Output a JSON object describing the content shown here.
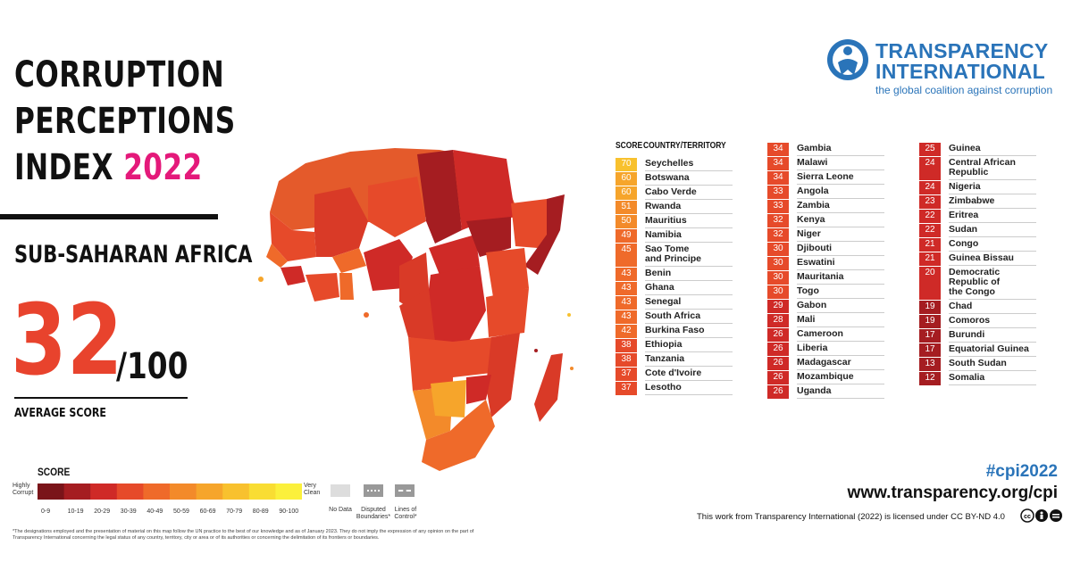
{
  "title": {
    "line1": "CORRUPTION",
    "line2": "PERCEPTIONS",
    "line3_prefix": "INDEX ",
    "year": "2022"
  },
  "region": "SUB-SAHARAN AFRICA",
  "average": {
    "score": "32",
    "max": "/100",
    "label": "AVERAGE SCORE"
  },
  "logo": {
    "name_line1": "TRANSPARENCY",
    "name_line2": "INTERNATIONAL",
    "tagline": "the global coalition against corruption",
    "icon": "figure-in-circle-icon",
    "color": "#2a74b9"
  },
  "table_headers": {
    "score": "SCORE",
    "country": "COUNTRY/TERRITORY"
  },
  "chart_data": {
    "type": "table",
    "columns": [
      "SCORE",
      "COUNTRY/TERRITORY"
    ],
    "rows": [
      {
        "score": 70,
        "country": "Seychelles"
      },
      {
        "score": 60,
        "country": "Botswana"
      },
      {
        "score": 60,
        "country": "Cabo Verde"
      },
      {
        "score": 51,
        "country": "Rwanda"
      },
      {
        "score": 50,
        "country": "Mauritius"
      },
      {
        "score": 49,
        "country": "Namibia"
      },
      {
        "score": 45,
        "country": "Sao Tome\nand Principe"
      },
      {
        "score": 43,
        "country": "Benin"
      },
      {
        "score": 43,
        "country": "Ghana"
      },
      {
        "score": 43,
        "country": "Senegal"
      },
      {
        "score": 43,
        "country": "South Africa"
      },
      {
        "score": 42,
        "country": "Burkina Faso"
      },
      {
        "score": 38,
        "country": "Ethiopia"
      },
      {
        "score": 38,
        "country": "Tanzania"
      },
      {
        "score": 37,
        "country": "Cote d'Ivoire"
      },
      {
        "score": 37,
        "country": "Lesotho"
      },
      {
        "score": 34,
        "country": "Gambia"
      },
      {
        "score": 34,
        "country": "Malawi"
      },
      {
        "score": 34,
        "country": "Sierra Leone"
      },
      {
        "score": 33,
        "country": "Angola"
      },
      {
        "score": 33,
        "country": "Zambia"
      },
      {
        "score": 32,
        "country": "Kenya"
      },
      {
        "score": 32,
        "country": "Niger"
      },
      {
        "score": 30,
        "country": "Djibouti"
      },
      {
        "score": 30,
        "country": "Eswatini"
      },
      {
        "score": 30,
        "country": "Mauritania"
      },
      {
        "score": 30,
        "country": "Togo"
      },
      {
        "score": 29,
        "country": "Gabon"
      },
      {
        "score": 28,
        "country": "Mali"
      },
      {
        "score": 26,
        "country": "Cameroon"
      },
      {
        "score": 26,
        "country": "Liberia"
      },
      {
        "score": 26,
        "country": "Madagascar"
      },
      {
        "score": 26,
        "country": "Mozambique"
      },
      {
        "score": 26,
        "country": "Uganda"
      },
      {
        "score": 25,
        "country": "Guinea"
      },
      {
        "score": 24,
        "country": "Central African\nRepublic"
      },
      {
        "score": 24,
        "country": "Nigeria"
      },
      {
        "score": 23,
        "country": "Zimbabwe"
      },
      {
        "score": 22,
        "country": "Eritrea"
      },
      {
        "score": 22,
        "country": "Sudan"
      },
      {
        "score": 21,
        "country": "Congo"
      },
      {
        "score": 21,
        "country": "Guinea Bissau"
      },
      {
        "score": 20,
        "country": "Democratic\nRepublic of\nthe Congo"
      },
      {
        "score": 19,
        "country": "Chad"
      },
      {
        "score": 19,
        "country": "Comoros"
      },
      {
        "score": 17,
        "country": "Burundi"
      },
      {
        "score": 17,
        "country": "Equatorial Guinea"
      },
      {
        "score": 13,
        "country": "South Sudan"
      },
      {
        "score": 12,
        "country": "Somalia"
      }
    ],
    "columns_split": [
      16,
      18,
      15
    ]
  },
  "legend": {
    "title": "SCORE",
    "low_label": "Highly\nCorrupt",
    "high_label": "Very\nClean",
    "ticks": [
      "0-9",
      "10-19",
      "20-29",
      "30-39",
      "40-49",
      "50-59",
      "60-69",
      "70-79",
      "80-89",
      "90-100"
    ],
    "colors": [
      "#7a1419",
      "#a51d21",
      "#cf2a27",
      "#e64a2a",
      "#ef6a2a",
      "#f38a2a",
      "#f6a52b",
      "#f8c12e",
      "#f9dd33",
      "#fbf03c"
    ],
    "no_data": "No Data",
    "disputed": "Disputed\nBoundaries*",
    "control": "Lines of\nControl*"
  },
  "footnote": "*The designations employed and the presentation of material on this map follow the UN practice to the best of our knowledge and as of January 2023. They do not imply the expression of any opinion on the part of Transparency International concerning the legal status of any country, territory, city or area or of its authorities or concerning the delimitation of its frontiers or boundaries.",
  "hashtag": "#cpi2022",
  "url": "www.transparency.org/cpi",
  "license": "This work from Transparency International (2022) is licensed under CC BY-ND 4.0",
  "license_icons": [
    "cc-icon",
    "by-icon",
    "nd-icon"
  ],
  "accent_color": "#e4197a",
  "score_color": "#e8432d"
}
